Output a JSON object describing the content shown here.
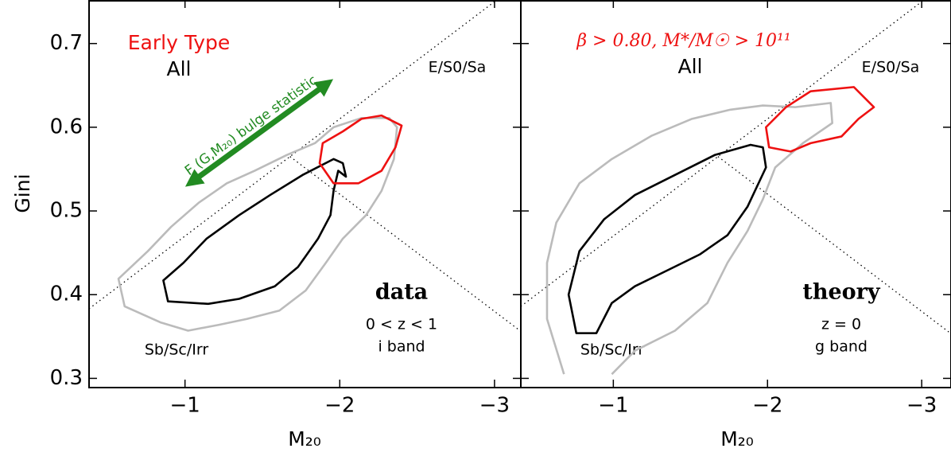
{
  "chart_data": [
    {
      "type": "line",
      "xlabel": "M₂₀",
      "ylabel": "Gini",
      "xlim": [
        -0.38,
        -3.17
      ],
      "ylim": [
        0.289,
        0.752
      ],
      "xticks": [
        {
          "value": -1,
          "label": "−1"
        },
        {
          "value": -2,
          "label": "−2"
        },
        {
          "value": -3,
          "label": "−3"
        }
      ],
      "yticks": [
        0.3,
        0.4,
        0.5,
        0.6,
        0.7
      ],
      "lines": [
        {
          "slope": -0.14,
          "intercept": 0.33
        },
        {
          "slope": 0.14,
          "intercept": 0.8
        }
      ],
      "annotations": [
        "Early Type",
        "All",
        "E/S0/Sa",
        "Sb/Sc/Irr",
        "data",
        "0 < z < 1",
        "i band",
        "F (G,M₂₀) bulge statistic"
      ],
      "series": [
        {
          "color": "#bbbbbb",
          "closed": true,
          "x": [
            -0.57,
            -0.61,
            -0.84,
            -1.02,
            -1.22,
            -1.4,
            -1.61,
            -1.78,
            -1.91,
            -2.02,
            -2.17,
            -2.27,
            -2.35,
            -2.37,
            -2.32,
            -2.14,
            -1.96,
            -1.84,
            -1.66,
            -1.45,
            -1.27,
            -1.09,
            -0.91,
            -0.76
          ],
          "y": [
            0.419,
            0.386,
            0.367,
            0.357,
            0.364,
            0.371,
            0.381,
            0.405,
            0.438,
            0.467,
            0.495,
            0.524,
            0.562,
            0.6,
            0.611,
            0.611,
            0.6,
            0.581,
            0.567,
            0.548,
            0.533,
            0.51,
            0.481,
            0.452
          ]
        },
        {
          "color": "#000000",
          "closed": true,
          "x": [
            -0.86,
            -0.89,
            -1.15,
            -1.35,
            -1.58,
            -1.73,
            -1.86,
            -1.94,
            -1.96,
            -1.99,
            -2.04,
            -2.02,
            -1.96,
            -1.76,
            -1.55,
            -1.35,
            -1.14,
            -0.99
          ],
          "y": [
            0.417,
            0.392,
            0.389,
            0.395,
            0.41,
            0.433,
            0.467,
            0.495,
            0.524,
            0.548,
            0.541,
            0.557,
            0.562,
            0.543,
            0.519,
            0.495,
            0.467,
            0.438
          ]
        },
        {
          "color": "#ee1111",
          "closed": true,
          "x": [
            -1.89,
            -1.87,
            -1.96,
            -2.12,
            -2.27,
            -2.36,
            -2.4,
            -2.27,
            -2.14,
            -2.02
          ],
          "y": [
            0.581,
            0.557,
            0.533,
            0.533,
            0.548,
            0.576,
            0.602,
            0.614,
            0.61,
            0.595
          ]
        }
      ]
    },
    {
      "type": "line",
      "xlabel": "M₂₀",
      "sharey": true,
      "xlim": [
        -0.4,
        -3.19
      ],
      "ylim": [
        0.289,
        0.752
      ],
      "xticks": [
        {
          "value": -1,
          "label": "−1"
        },
        {
          "value": -2,
          "label": "−2"
        },
        {
          "value": -3,
          "label": "−3"
        }
      ],
      "yticks": [
        0.3,
        0.4,
        0.5,
        0.6,
        0.7
      ],
      "lines": [
        {
          "slope": -0.14,
          "intercept": 0.33
        },
        {
          "slope": 0.14,
          "intercept": 0.8
        }
      ],
      "annotations": [
        "β > 0.80,  M*/M☉ > 10¹¹",
        "All",
        "E/S0/Sa",
        "Sb/Sc/Irr",
        "theory",
        "z = 0",
        "g band"
      ],
      "series": [
        {
          "color": "#bbbbbb",
          "closed": false,
          "x": [
            -0.68,
            -0.57,
            -0.57,
            -0.63,
            -0.78,
            -0.99,
            -1.25,
            -1.51,
            -1.76,
            -1.97,
            -2.18,
            -2.41,
            -2.42,
            -2.23,
            -2.05,
            -1.97,
            -1.87,
            -1.74,
            -1.61,
            -1.4,
            -1.14,
            -0.99
          ],
          "y": [
            0.305,
            0.371,
            0.438,
            0.486,
            0.533,
            0.562,
            0.59,
            0.61,
            0.621,
            0.626,
            0.624,
            0.629,
            0.605,
            0.581,
            0.552,
            0.514,
            0.476,
            0.438,
            0.39,
            0.357,
            0.333,
            0.305
          ]
        },
        {
          "color": "#000000",
          "closed": true,
          "x": [
            -0.76,
            -0.89,
            -0.99,
            -1.14,
            -1.35,
            -1.56,
            -1.74,
            -1.87,
            -1.99,
            -1.97,
            -1.89,
            -1.66,
            -1.4,
            -1.14,
            -0.94,
            -0.78,
            -0.71
          ],
          "y": [
            0.354,
            0.354,
            0.39,
            0.41,
            0.429,
            0.448,
            0.471,
            0.505,
            0.552,
            0.576,
            0.579,
            0.567,
            0.543,
            0.519,
            0.49,
            0.452,
            0.4
          ]
        },
        {
          "color": "#ee1111",
          "closed": true,
          "x": [
            -1.99,
            -2.01,
            -2.15,
            -2.28,
            -2.48,
            -2.59,
            -2.69,
            -2.56,
            -2.28,
            -2.12
          ],
          "y": [
            0.6,
            0.576,
            0.571,
            0.581,
            0.589,
            0.61,
            0.624,
            0.648,
            0.643,
            0.624
          ]
        }
      ]
    }
  ]
}
